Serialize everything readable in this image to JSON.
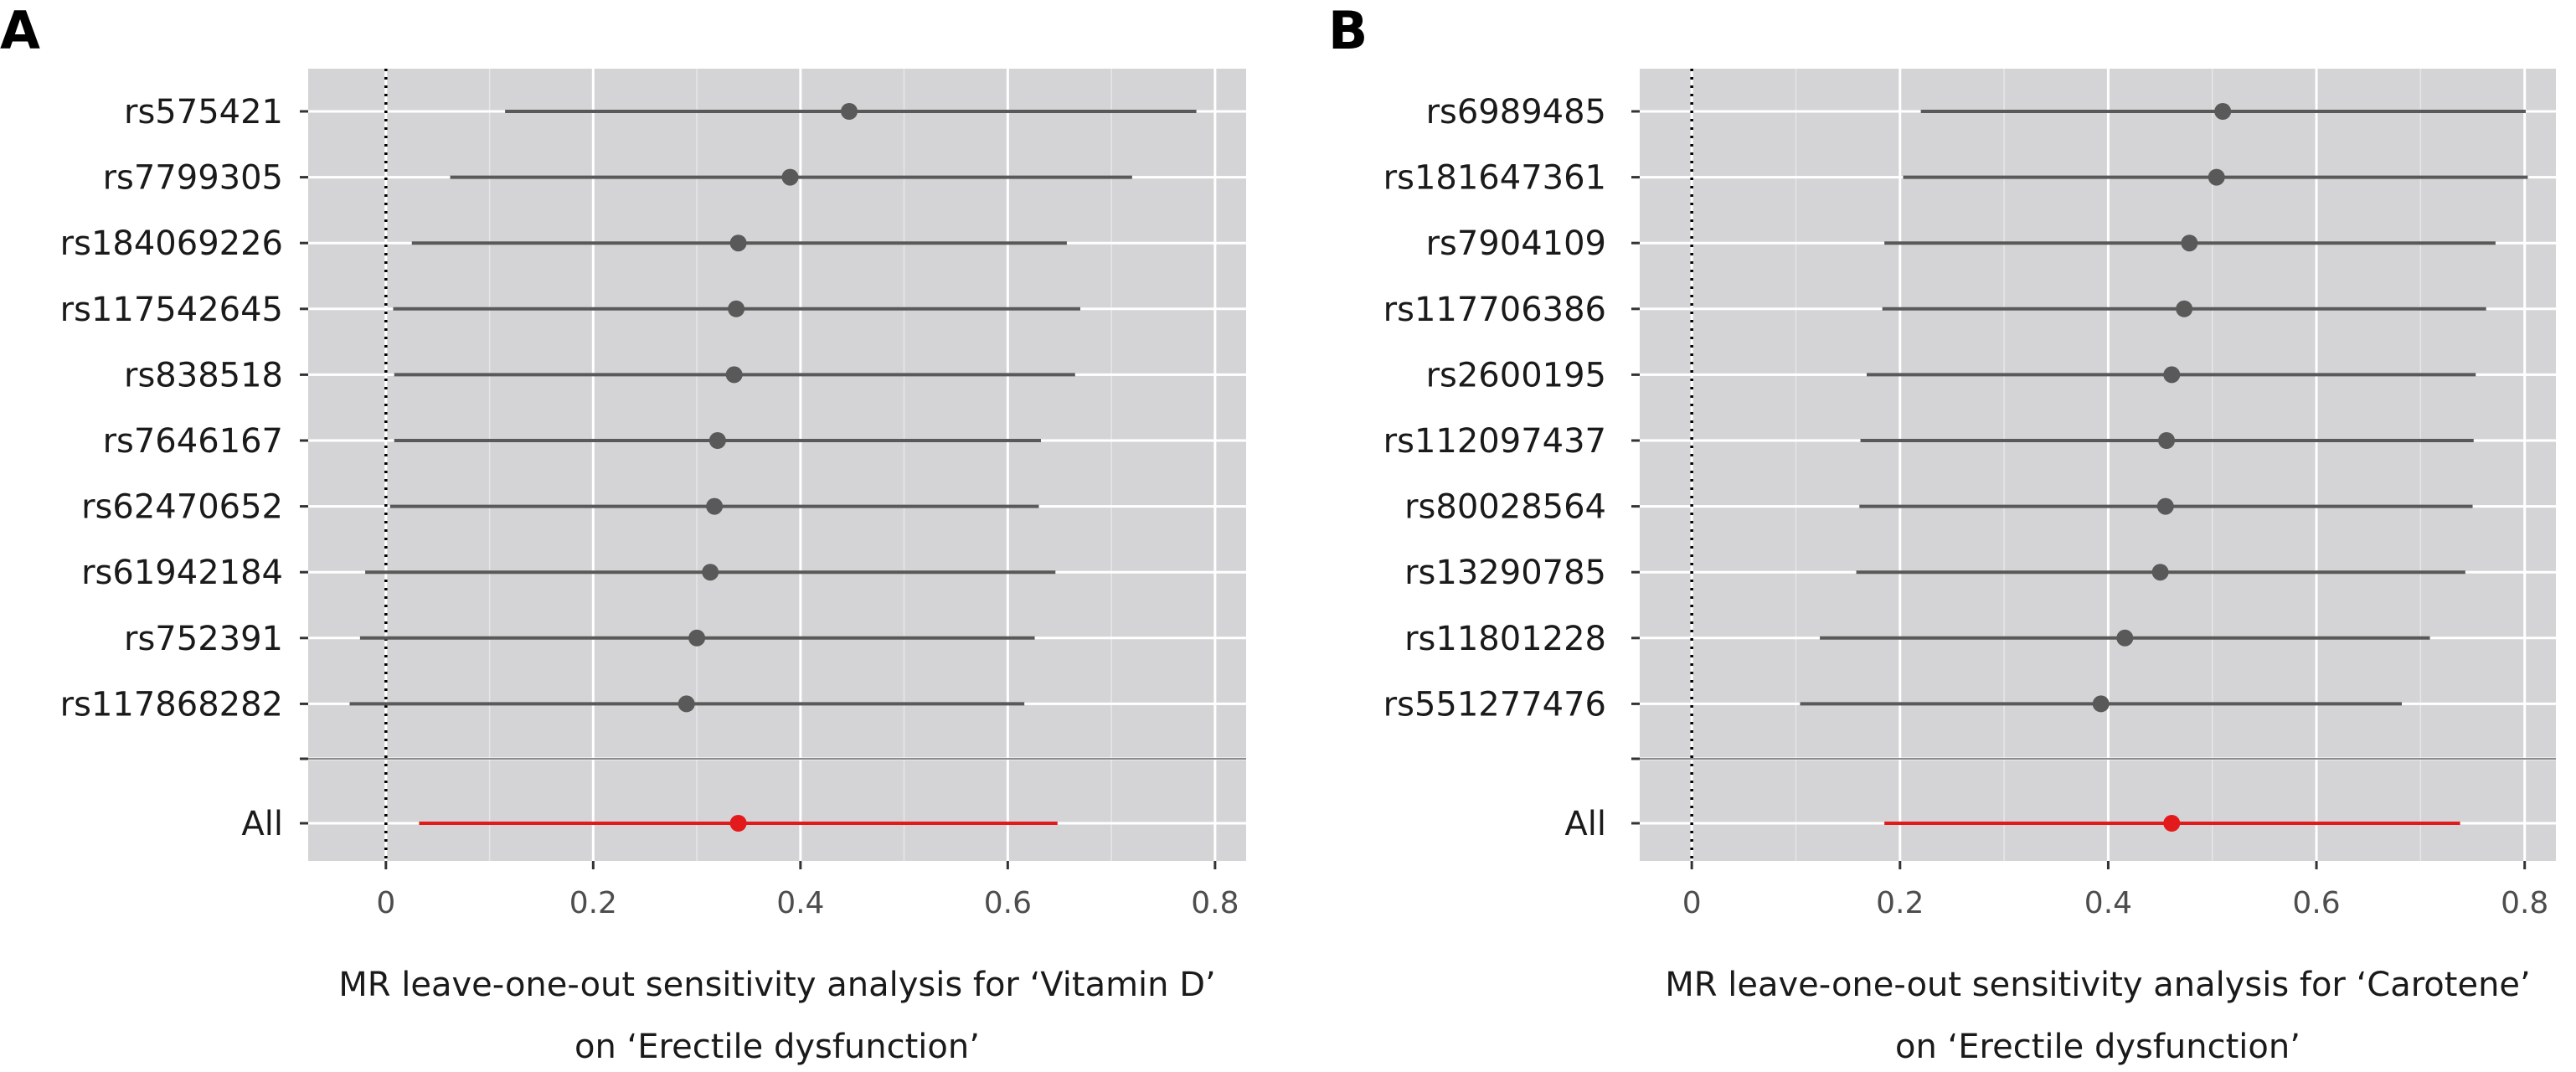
{
  "chart_data": [
    {
      "type": "forest",
      "panel_label": "A",
      "title": "",
      "xlabel_lines": [
        "MR leave-one-out sensitivity analysis for ‘Vitamin D’",
        "on ‘Erectile dysfunction’"
      ],
      "xlim": [
        -0.075,
        0.83
      ],
      "xticks": [
        0,
        0.2,
        0.4,
        0.6,
        0.8
      ],
      "xtick_labels": [
        "0",
        "0.2",
        "0.4",
        "0.6",
        "0.8"
      ],
      "reference_line": 0,
      "snps": [
        {
          "label": "rs575421",
          "estimate": 0.447,
          "lower": 0.115,
          "upper": 0.782
        },
        {
          "label": "rs7799305",
          "estimate": 0.39,
          "lower": 0.062,
          "upper": 0.72
        },
        {
          "label": "rs184069226",
          "estimate": 0.34,
          "lower": 0.025,
          "upper": 0.657
        },
        {
          "label": "rs117542645",
          "estimate": 0.338,
          "lower": 0.007,
          "upper": 0.67
        },
        {
          "label": "rs838518",
          "estimate": 0.336,
          "lower": 0.008,
          "upper": 0.665
        },
        {
          "label": "rs7646167",
          "estimate": 0.32,
          "lower": 0.008,
          "upper": 0.632
        },
        {
          "label": "rs62470652",
          "estimate": 0.317,
          "lower": 0.004,
          "upper": 0.63
        },
        {
          "label": "rs61942184",
          "estimate": 0.313,
          "lower": -0.02,
          "upper": 0.646
        },
        {
          "label": "rs752391",
          "estimate": 0.3,
          "lower": -0.025,
          "upper": 0.626
        },
        {
          "label": "rs117868282",
          "estimate": 0.29,
          "lower": -0.035,
          "upper": 0.616
        }
      ],
      "overall": {
        "label": "All",
        "estimate": 0.34,
        "lower": 0.032,
        "upper": 0.648
      },
      "colors": {
        "panel_bg": "#d4d4d6",
        "grid": "#ffffff",
        "point": "#595959",
        "overall": "#e31a1c"
      }
    },
    {
      "type": "forest",
      "panel_label": "B",
      "title": "",
      "xlabel_lines": [
        "MR leave-one-out sensitivity analysis for ‘Carotene’",
        "on ‘Erectile dysfunction’"
      ],
      "xlim": [
        -0.05,
        0.83
      ],
      "xticks": [
        0,
        0.2,
        0.4,
        0.6,
        0.8
      ],
      "xtick_labels": [
        "0",
        "0.2",
        "0.4",
        "0.6",
        "0.8"
      ],
      "reference_line": 0,
      "snps": [
        {
          "label": "rs6989485",
          "estimate": 0.51,
          "lower": 0.22,
          "upper": 0.801
        },
        {
          "label": "rs181647361",
          "estimate": 0.504,
          "lower": 0.203,
          "upper": 0.803
        },
        {
          "label": "rs7904109",
          "estimate": 0.478,
          "lower": 0.185,
          "upper": 0.772
        },
        {
          "label": "rs117706386",
          "estimate": 0.473,
          "lower": 0.183,
          "upper": 0.763
        },
        {
          "label": "rs2600195",
          "estimate": 0.461,
          "lower": 0.168,
          "upper": 0.753
        },
        {
          "label": "rs112097437",
          "estimate": 0.456,
          "lower": 0.162,
          "upper": 0.751
        },
        {
          "label": "rs80028564",
          "estimate": 0.455,
          "lower": 0.161,
          "upper": 0.75
        },
        {
          "label": "rs13290785",
          "estimate": 0.45,
          "lower": 0.158,
          "upper": 0.743
        },
        {
          "label": "rs11801228",
          "estimate": 0.416,
          "lower": 0.123,
          "upper": 0.709
        },
        {
          "label": "rs551277476",
          "estimate": 0.393,
          "lower": 0.104,
          "upper": 0.682
        }
      ],
      "overall": {
        "label": "All",
        "estimate": 0.461,
        "lower": 0.185,
        "upper": 0.738
      },
      "colors": {
        "panel_bg": "#d4d4d6",
        "grid": "#ffffff",
        "point": "#595959",
        "overall": "#e31a1c"
      }
    }
  ]
}
